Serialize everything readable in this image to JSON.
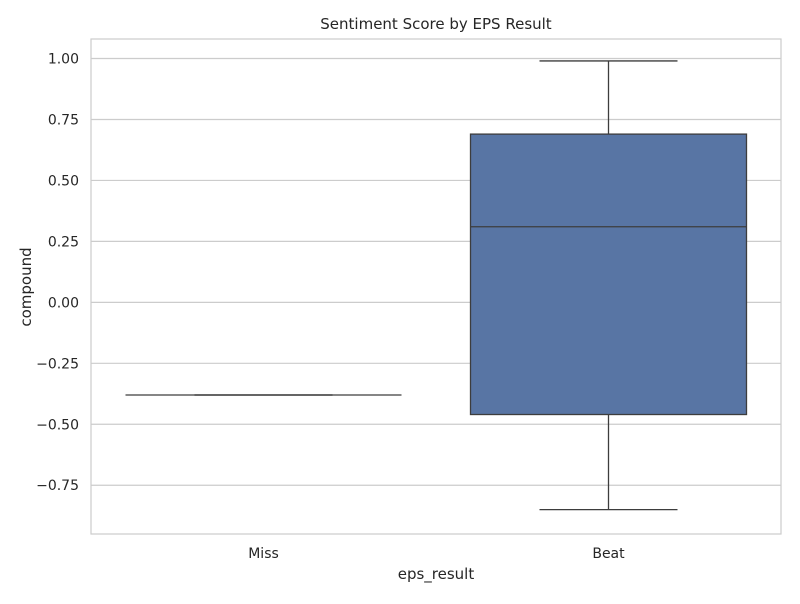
{
  "chart_data": {
    "type": "box",
    "title": "Sentiment Score by EPS Result",
    "xlabel": "eps_result",
    "ylabel": "compound",
    "categories": [
      "Miss",
      "Beat"
    ],
    "boxes": [
      {
        "category": "Miss",
        "whisker_low": -0.38,
        "q1": -0.38,
        "median": -0.38,
        "q3": -0.38,
        "whisker_high": -0.38
      },
      {
        "category": "Beat",
        "whisker_low": -0.85,
        "q1": -0.46,
        "median": 0.31,
        "q3": 0.69,
        "whisker_high": 0.99
      }
    ],
    "ylim": [
      -0.95,
      1.08
    ],
    "yticks": [
      -0.75,
      -0.5,
      -0.25,
      0.0,
      0.25,
      0.5,
      0.75,
      1.0
    ],
    "ytick_labels": [
      "−0.75",
      "−0.50",
      "−0.25",
      "0.00",
      "0.25",
      "0.50",
      "0.75",
      "1.00"
    ],
    "grid": true,
    "colors": {
      "box_fill": "#5875a4",
      "line": "#3d3d3d",
      "grid": "#cccccc",
      "frame": "#cccccc"
    }
  }
}
